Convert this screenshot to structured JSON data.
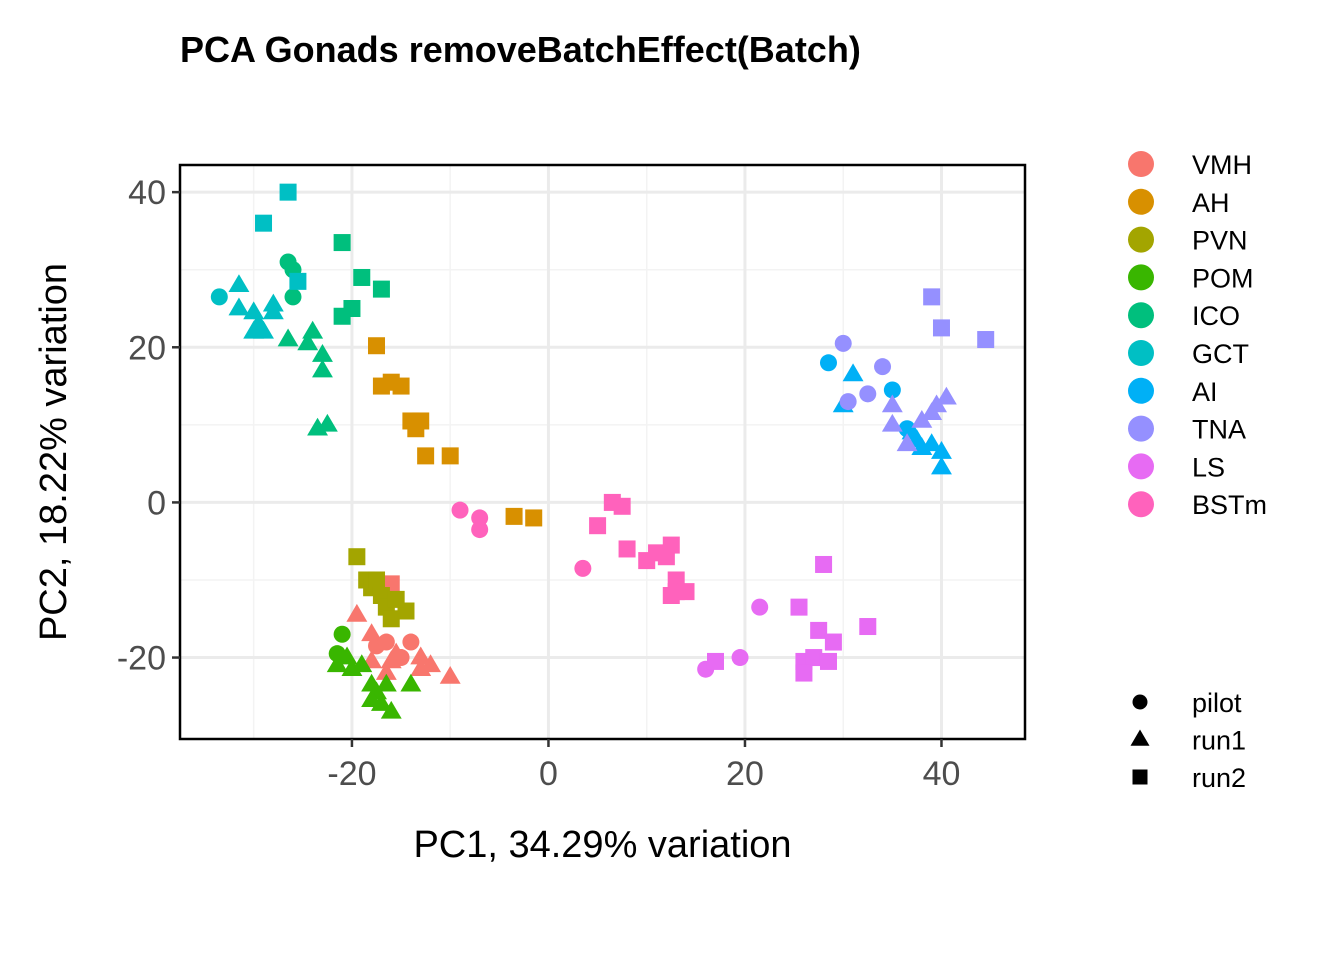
{
  "chart_data": {
    "type": "scatter",
    "title": "PCA Gonads removeBatchEffect(Batch)",
    "xlabel": "PC1, 34.29% variation",
    "ylabel": "PC2, 18.22% variation",
    "xlim": [
      -37.5,
      48.5
    ],
    "ylim": [
      -30.5,
      43.5
    ],
    "xticks": [
      -20,
      0,
      20,
      40
    ],
    "yticks": [
      -20,
      0,
      20,
      40
    ],
    "x_tick_labels": [
      "-20",
      "0",
      "20",
      "40"
    ],
    "y_tick_labels": [
      "-20",
      "0",
      "20",
      "40"
    ],
    "grid": true,
    "legend_position": "right",
    "color_legend": [
      {
        "name": "VMH",
        "color": "#F8766D"
      },
      {
        "name": "AH",
        "color": "#D89000"
      },
      {
        "name": "PVN",
        "color": "#A3A500"
      },
      {
        "name": "POM",
        "color": "#39B600"
      },
      {
        "name": "ICO",
        "color": "#00BF7D"
      },
      {
        "name": "GCT",
        "color": "#00BFC4"
      },
      {
        "name": "AI",
        "color": "#00B0F6"
      },
      {
        "name": "TNA",
        "color": "#9590FF"
      },
      {
        "name": "LS",
        "color": "#E76BF3"
      },
      {
        "name": "BSTm",
        "color": "#FF62BC"
      }
    ],
    "shape_legend": [
      {
        "name": "pilot",
        "shape": "circle"
      },
      {
        "name": "run1",
        "shape": "triangle"
      },
      {
        "name": "run2",
        "shape": "square"
      }
    ],
    "series": [
      {
        "group": "VMH",
        "points": [
          {
            "x": -16,
            "y": -10.5,
            "shape": "square"
          },
          {
            "x": -19.5,
            "y": -14.5,
            "shape": "triangle"
          },
          {
            "x": -18,
            "y": -17,
            "shape": "triangle"
          },
          {
            "x": -17.5,
            "y": -18.5,
            "shape": "circle"
          },
          {
            "x": -16.5,
            "y": -18,
            "shape": "circle"
          },
          {
            "x": -15.5,
            "y": -19.5,
            "shape": "triangle"
          },
          {
            "x": -14,
            "y": -18,
            "shape": "circle"
          },
          {
            "x": -15,
            "y": -20,
            "shape": "circle"
          },
          {
            "x": -18,
            "y": -20.5,
            "shape": "triangle"
          },
          {
            "x": -16,
            "y": -20.5,
            "shape": "triangle"
          },
          {
            "x": -13,
            "y": -20,
            "shape": "triangle"
          },
          {
            "x": -13,
            "y": -21.5,
            "shape": "triangle"
          },
          {
            "x": -12,
            "y": -21,
            "shape": "triangle"
          },
          {
            "x": -16.5,
            "y": -22,
            "shape": "triangle"
          },
          {
            "x": -10,
            "y": -22.5,
            "shape": "triangle"
          }
        ]
      },
      {
        "group": "AH",
        "points": [
          {
            "x": -17.5,
            "y": 20.2,
            "shape": "square"
          },
          {
            "x": -17,
            "y": 15,
            "shape": "square"
          },
          {
            "x": -16,
            "y": 15.5,
            "shape": "square"
          },
          {
            "x": -15,
            "y": 15,
            "shape": "square"
          },
          {
            "x": -14,
            "y": 10.5,
            "shape": "square"
          },
          {
            "x": -13,
            "y": 10.5,
            "shape": "square"
          },
          {
            "x": -13.5,
            "y": 9.5,
            "shape": "square"
          },
          {
            "x": -12.5,
            "y": 6,
            "shape": "square"
          },
          {
            "x": -10,
            "y": 6,
            "shape": "square"
          },
          {
            "x": -3.5,
            "y": -1.8,
            "shape": "square"
          },
          {
            "x": -1.5,
            "y": -2,
            "shape": "square"
          }
        ]
      },
      {
        "group": "PVN",
        "points": [
          {
            "x": -19.5,
            "y": -7,
            "shape": "square"
          },
          {
            "x": -18.5,
            "y": -10,
            "shape": "square"
          },
          {
            "x": -18,
            "y": -11,
            "shape": "square"
          },
          {
            "x": -17.5,
            "y": -10,
            "shape": "square"
          },
          {
            "x": -17,
            "y": -12,
            "shape": "square"
          },
          {
            "x": -16.5,
            "y": -13.5,
            "shape": "square"
          },
          {
            "x": -16,
            "y": -15,
            "shape": "square"
          },
          {
            "x": -14.5,
            "y": -14,
            "shape": "square"
          },
          {
            "x": -15.5,
            "y": -12.5,
            "shape": "square"
          }
        ]
      },
      {
        "group": "POM",
        "points": [
          {
            "x": -21,
            "y": -17,
            "shape": "circle"
          },
          {
            "x": -21.5,
            "y": -19.5,
            "shape": "circle"
          },
          {
            "x": -20.5,
            "y": -20,
            "shape": "triangle"
          },
          {
            "x": -21.5,
            "y": -21,
            "shape": "triangle"
          },
          {
            "x": -20,
            "y": -21.5,
            "shape": "triangle"
          },
          {
            "x": -19,
            "y": -21,
            "shape": "triangle"
          },
          {
            "x": -18,
            "y": -23.5,
            "shape": "triangle"
          },
          {
            "x": -17.5,
            "y": -24.5,
            "shape": "triangle"
          },
          {
            "x": -16.5,
            "y": -23.5,
            "shape": "triangle"
          },
          {
            "x": -18,
            "y": -25.5,
            "shape": "triangle"
          },
          {
            "x": -17,
            "y": -26,
            "shape": "triangle"
          },
          {
            "x": -16,
            "y": -27,
            "shape": "triangle"
          },
          {
            "x": -14,
            "y": -23.5,
            "shape": "triangle"
          }
        ]
      },
      {
        "group": "ICO",
        "points": [
          {
            "x": -21,
            "y": 33.5,
            "shape": "square"
          },
          {
            "x": -19,
            "y": 29,
            "shape": "square"
          },
          {
            "x": -17,
            "y": 27.5,
            "shape": "square"
          },
          {
            "x": -20,
            "y": 25,
            "shape": "square"
          },
          {
            "x": -21,
            "y": 24,
            "shape": "square"
          },
          {
            "x": -26.5,
            "y": 31,
            "shape": "circle"
          },
          {
            "x": -26,
            "y": 30,
            "shape": "circle"
          },
          {
            "x": -26,
            "y": 26.5,
            "shape": "circle"
          },
          {
            "x": -24,
            "y": 22,
            "shape": "triangle"
          },
          {
            "x": -24.5,
            "y": 20.5,
            "shape": "triangle"
          },
          {
            "x": -23,
            "y": 19,
            "shape": "triangle"
          },
          {
            "x": -23,
            "y": 17,
            "shape": "triangle"
          },
          {
            "x": -26.5,
            "y": 21,
            "shape": "triangle"
          },
          {
            "x": -22.5,
            "y": 10,
            "shape": "triangle"
          },
          {
            "x": -23.5,
            "y": 9.5,
            "shape": "triangle"
          }
        ]
      },
      {
        "group": "GCT",
        "points": [
          {
            "x": -26.5,
            "y": 40,
            "shape": "square"
          },
          {
            "x": -29,
            "y": 36,
            "shape": "square"
          },
          {
            "x": -25.5,
            "y": 28.5,
            "shape": "square"
          },
          {
            "x": -33.5,
            "y": 26.5,
            "shape": "circle"
          },
          {
            "x": -31.5,
            "y": 28,
            "shape": "triangle"
          },
          {
            "x": -31.5,
            "y": 25,
            "shape": "triangle"
          },
          {
            "x": -30,
            "y": 24.5,
            "shape": "triangle"
          },
          {
            "x": -28,
            "y": 25.5,
            "shape": "triangle"
          },
          {
            "x": -28,
            "y": 24.5,
            "shape": "triangle"
          },
          {
            "x": -29.5,
            "y": 23,
            "shape": "triangle"
          },
          {
            "x": -30,
            "y": 22,
            "shape": "triangle"
          },
          {
            "x": -29,
            "y": 22,
            "shape": "triangle"
          }
        ]
      },
      {
        "group": "AI",
        "points": [
          {
            "x": 28.5,
            "y": 18,
            "shape": "circle"
          },
          {
            "x": 31,
            "y": 16.5,
            "shape": "triangle"
          },
          {
            "x": 35,
            "y": 14.5,
            "shape": "circle"
          },
          {
            "x": 30,
            "y": 12.5,
            "shape": "triangle"
          },
          {
            "x": 36.5,
            "y": 9.5,
            "shape": "circle"
          },
          {
            "x": 37,
            "y": 9,
            "shape": "triangle"
          },
          {
            "x": 37.5,
            "y": 8,
            "shape": "triangle"
          },
          {
            "x": 38,
            "y": 7,
            "shape": "triangle"
          },
          {
            "x": 39,
            "y": 7.5,
            "shape": "triangle"
          },
          {
            "x": 40,
            "y": 6.5,
            "shape": "triangle"
          },
          {
            "x": 40,
            "y": 4.5,
            "shape": "triangle"
          }
        ]
      },
      {
        "group": "TNA",
        "points": [
          {
            "x": 39,
            "y": 26.5,
            "shape": "square"
          },
          {
            "x": 40,
            "y": 22.5,
            "shape": "square"
          },
          {
            "x": 44.5,
            "y": 21,
            "shape": "square"
          },
          {
            "x": 30,
            "y": 20.5,
            "shape": "circle"
          },
          {
            "x": 34,
            "y": 17.5,
            "shape": "circle"
          },
          {
            "x": 32.5,
            "y": 14,
            "shape": "circle"
          },
          {
            "x": 30.5,
            "y": 13,
            "shape": "circle"
          },
          {
            "x": 35,
            "y": 12.5,
            "shape": "triangle"
          },
          {
            "x": 35,
            "y": 10,
            "shape": "triangle"
          },
          {
            "x": 36.5,
            "y": 7.5,
            "shape": "triangle"
          },
          {
            "x": 38,
            "y": 10.5,
            "shape": "triangle"
          },
          {
            "x": 39,
            "y": 11.5,
            "shape": "triangle"
          },
          {
            "x": 40.5,
            "y": 13.5,
            "shape": "triangle"
          },
          {
            "x": 39.5,
            "y": 12.5,
            "shape": "triangle"
          }
        ]
      },
      {
        "group": "LS",
        "points": [
          {
            "x": 28,
            "y": -8,
            "shape": "square"
          },
          {
            "x": 25.5,
            "y": -13.5,
            "shape": "square"
          },
          {
            "x": 32.5,
            "y": -16,
            "shape": "square"
          },
          {
            "x": 27.5,
            "y": -16.5,
            "shape": "square"
          },
          {
            "x": 29,
            "y": -18,
            "shape": "square"
          },
          {
            "x": 21.5,
            "y": -13.5,
            "shape": "circle"
          },
          {
            "x": 19.5,
            "y": -20,
            "shape": "circle"
          },
          {
            "x": 16,
            "y": -21.5,
            "shape": "circle"
          },
          {
            "x": 17,
            "y": -20.5,
            "shape": "square"
          },
          {
            "x": 26,
            "y": -20.5,
            "shape": "square"
          },
          {
            "x": 27,
            "y": -20,
            "shape": "square"
          },
          {
            "x": 28.5,
            "y": -20.5,
            "shape": "square"
          },
          {
            "x": 26,
            "y": -22,
            "shape": "square"
          }
        ]
      },
      {
        "group": "BSTm",
        "points": [
          {
            "x": -9,
            "y": -1,
            "shape": "circle"
          },
          {
            "x": -7,
            "y": -2,
            "shape": "circle"
          },
          {
            "x": -7,
            "y": -3.5,
            "shape": "circle"
          },
          {
            "x": 3.5,
            "y": -8.5,
            "shape": "circle"
          },
          {
            "x": 5,
            "y": -3,
            "shape": "square"
          },
          {
            "x": 6.5,
            "y": 0,
            "shape": "square"
          },
          {
            "x": 7.5,
            "y": -0.5,
            "shape": "square"
          },
          {
            "x": 8,
            "y": -6,
            "shape": "square"
          },
          {
            "x": 10,
            "y": -7.5,
            "shape": "square"
          },
          {
            "x": 11,
            "y": -6.5,
            "shape": "square"
          },
          {
            "x": 12,
            "y": -7,
            "shape": "square"
          },
          {
            "x": 12.5,
            "y": -5.5,
            "shape": "square"
          },
          {
            "x": 13,
            "y": -10,
            "shape": "square"
          },
          {
            "x": 13,
            "y": -11.5,
            "shape": "square"
          },
          {
            "x": 14,
            "y": -11.5,
            "shape": "square"
          },
          {
            "x": 12.5,
            "y": -12,
            "shape": "square"
          }
        ]
      }
    ]
  }
}
